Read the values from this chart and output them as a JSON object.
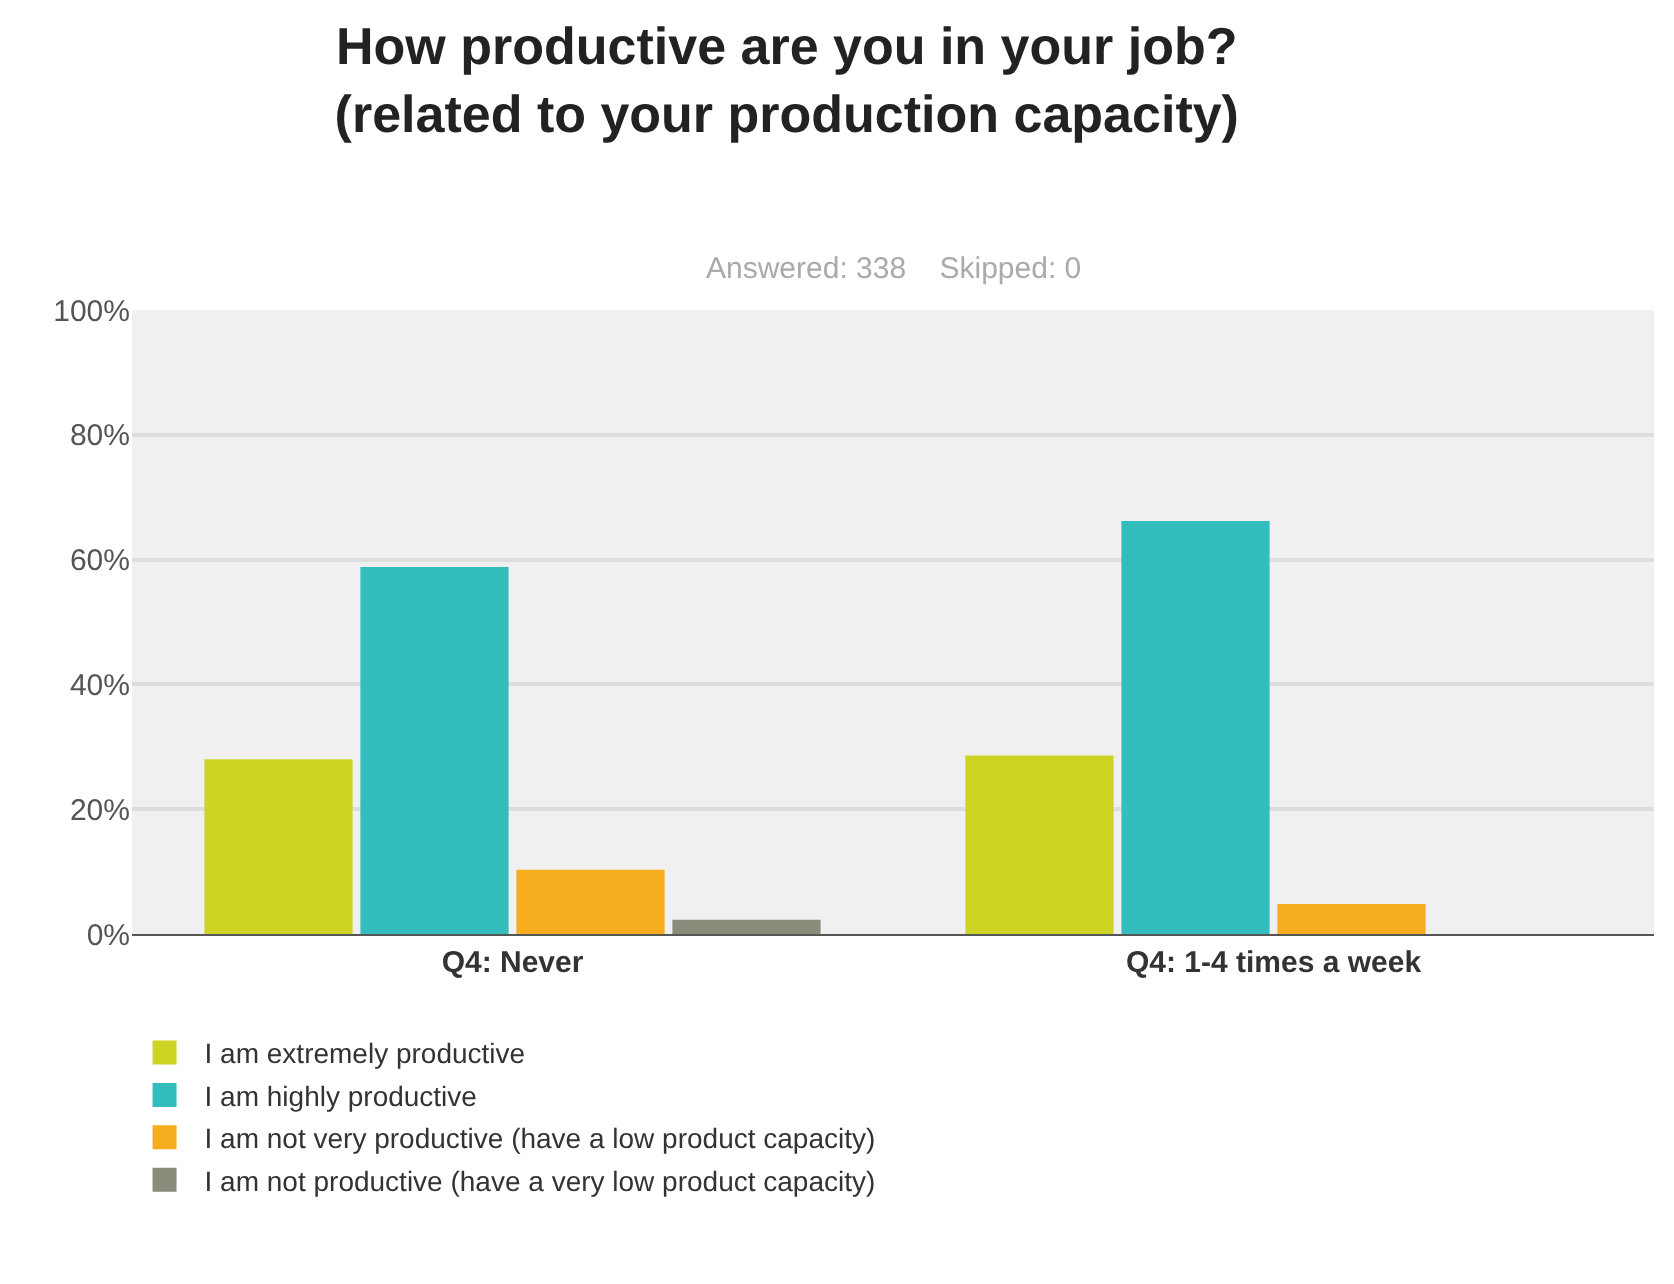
{
  "chart_data": {
    "type": "bar",
    "title": "How productive are you in your job?\n(related to your production capacity)",
    "subtitle": "Answered: 338    Skipped: 0",
    "categories": [
      "Q4: Never",
      "Q4: 1-4 times a week"
    ],
    "series": [
      {
        "name": "I am extremely productive",
        "color": "#cdd424",
        "values": [
          28,
          28.6
        ]
      },
      {
        "name": "I am highly productive",
        "color": "#33bdbd",
        "values": [
          58.8,
          66.2
        ]
      },
      {
        "name": "I am not very productive (have a low product capacity)",
        "color": "#f7ae1e",
        "values": [
          10.3,
          4.8
        ]
      },
      {
        "name": "I am not productive (have a very low product capacity)",
        "color": "#8a8b7a",
        "values": [
          2.3,
          0
        ]
      }
    ],
    "ylim": [
      0,
      100
    ],
    "yticks": [
      {
        "value": 0,
        "label": "0%"
      },
      {
        "value": 20,
        "label": "20%"
      },
      {
        "value": 40,
        "label": "40%"
      },
      {
        "value": 60,
        "label": "60%"
      },
      {
        "value": 80,
        "label": "80%"
      },
      {
        "value": 100,
        "label": "100%"
      }
    ],
    "grid": "y",
    "legend": "bottom"
  }
}
